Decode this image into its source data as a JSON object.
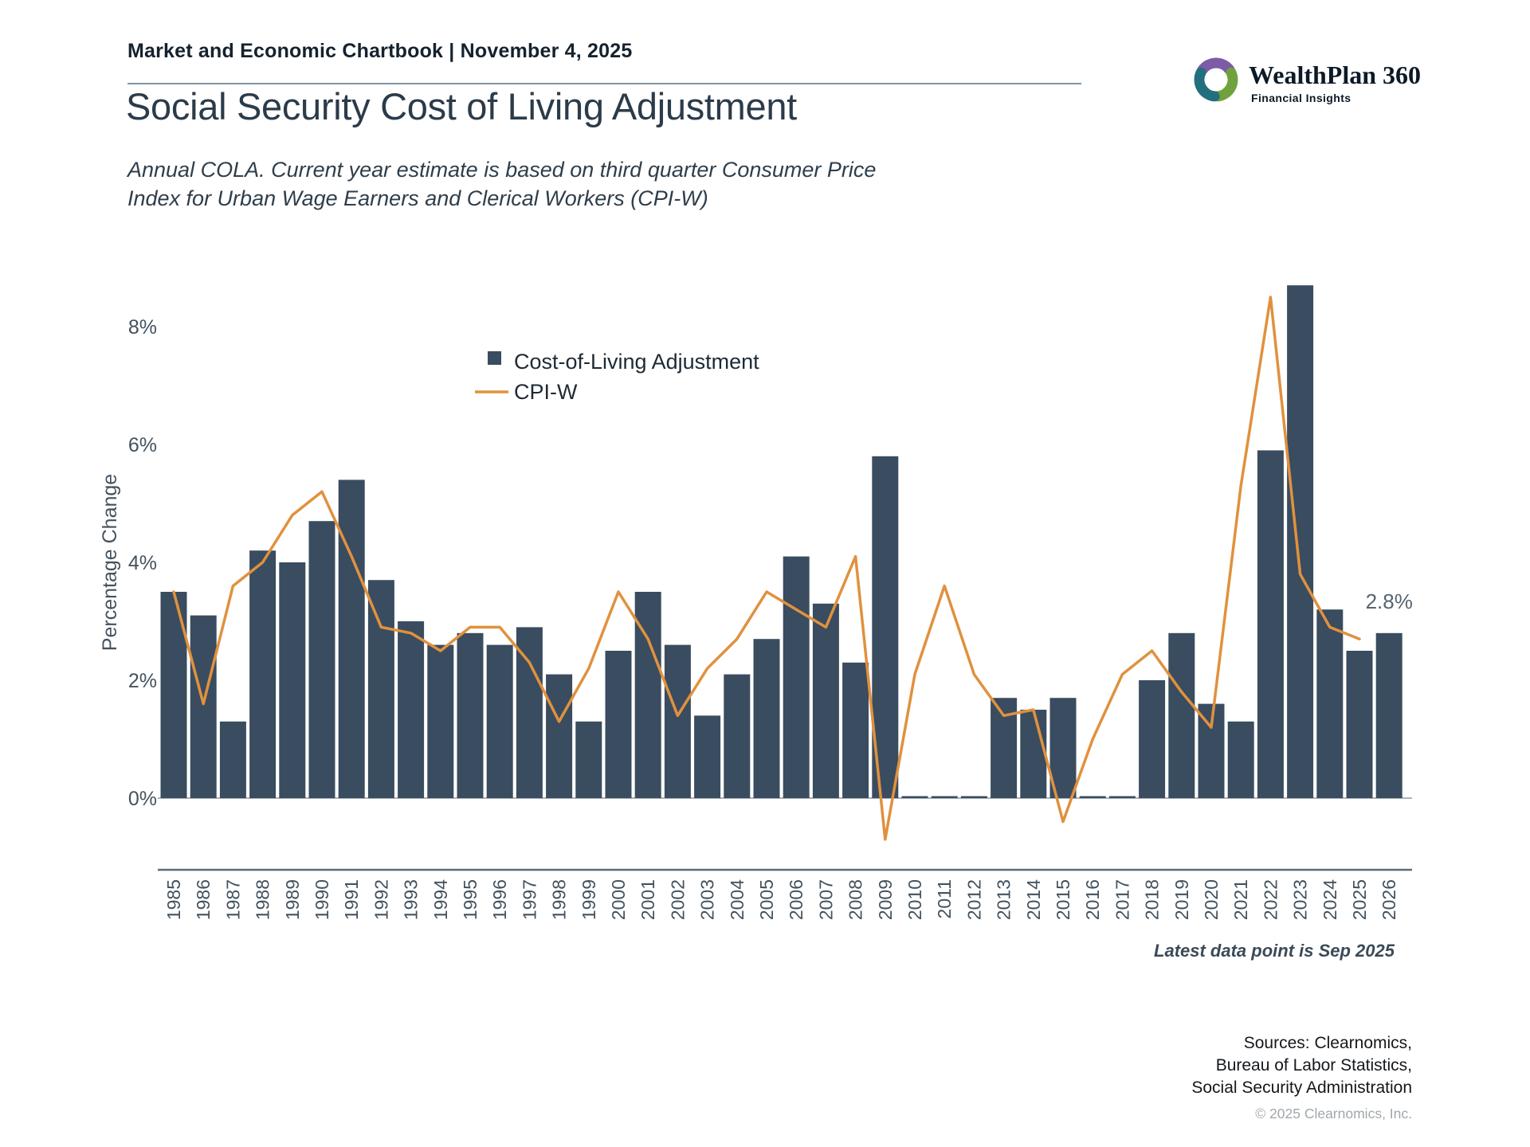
{
  "header": {
    "title": "Market and Economic Chartbook | November 4, 2025"
  },
  "logo": {
    "name": "WealthPlan 360",
    "tagline": "Financial Insights",
    "colors": {
      "purple": "#7e5ba6",
      "green": "#6fa23d",
      "teal": "#226f80"
    }
  },
  "page": {
    "title": "Social Security Cost of Living Adjustment",
    "subtitle": "Annual COLA. Current year estimate is based on third quarter Consumer Price Index for Urban Wage Earners and Clerical Workers (CPI-W)"
  },
  "chart_data": {
    "type": "bar",
    "title": "Social Security Cost of Living Adjustment",
    "xlabel": "",
    "ylabel": "Percentage Change",
    "yticks": [
      "0%",
      "2%",
      "4%",
      "6%",
      "8%"
    ],
    "ytick_values": [
      0,
      2,
      4,
      6,
      8
    ],
    "ylim": [
      -1.3,
      9.2
    ],
    "grid": false,
    "legend_position": "upper-center-left",
    "categories": [
      1985,
      1986,
      1987,
      1988,
      1989,
      1990,
      1991,
      1992,
      1993,
      1994,
      1995,
      1996,
      1997,
      1998,
      1999,
      2000,
      2001,
      2002,
      2003,
      2004,
      2005,
      2006,
      2007,
      2008,
      2009,
      2010,
      2011,
      2012,
      2013,
      2014,
      2015,
      2016,
      2017,
      2018,
      2019,
      2020,
      2021,
      2022,
      2023,
      2024,
      2025,
      2026
    ],
    "series": [
      {
        "name": "Cost-of-Living Adjustment",
        "type": "bar",
        "color": "#3a4c5f",
        "values": [
          3.5,
          3.1,
          1.3,
          4.2,
          4.0,
          4.7,
          5.4,
          3.7,
          3.0,
          2.6,
          2.8,
          2.6,
          2.9,
          2.1,
          1.3,
          2.5,
          3.5,
          2.6,
          1.4,
          2.1,
          2.7,
          4.1,
          3.3,
          2.3,
          5.8,
          0,
          0,
          0,
          1.7,
          1.5,
          1.7,
          0,
          0,
          2.0,
          2.8,
          1.6,
          1.3,
          5.9,
          8.7,
          3.2,
          2.5,
          2.8
        ]
      },
      {
        "name": "CPI-W",
        "type": "line",
        "color": "#e0913e",
        "values": [
          3.5,
          1.6,
          3.6,
          4.0,
          4.8,
          5.2,
          4.1,
          2.9,
          2.8,
          2.5,
          2.9,
          2.9,
          2.3,
          1.3,
          2.2,
          3.5,
          2.7,
          1.4,
          2.2,
          2.7,
          3.5,
          3.2,
          2.9,
          4.1,
          -0.7,
          2.1,
          3.6,
          2.1,
          1.4,
          1.5,
          -0.4,
          1.0,
          2.1,
          2.5,
          1.8,
          1.2,
          5.3,
          8.5,
          3.8,
          2.9,
          2.7,
          null
        ]
      }
    ],
    "annotation": {
      "text": "2.8%",
      "year": 2026,
      "value": 2.8
    },
    "note": "Latest data point is Sep 2025"
  },
  "footer": {
    "sources_lines": [
      "Sources: Clearnomics,",
      "Bureau of Labor Statistics,",
      "Social Security Administration"
    ],
    "copyright": "© 2025 Clearnomics, Inc."
  }
}
